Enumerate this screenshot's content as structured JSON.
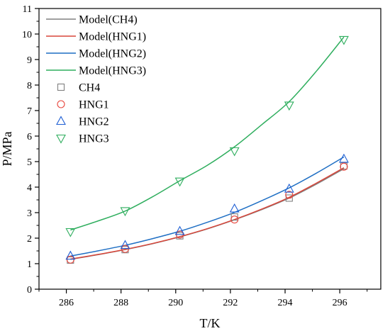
{
  "chart_data": {
    "type": "line",
    "xlabel": "T/K",
    "ylabel": "P/MPa",
    "xlim": [
      285,
      297.5
    ],
    "ylim": [
      0,
      11
    ],
    "xticks": [
      286,
      288,
      290,
      292,
      294,
      296
    ],
    "yticks": [
      0,
      1,
      2,
      3,
      4,
      5,
      6,
      7,
      8,
      9,
      10,
      11
    ],
    "grid": false,
    "legend_position": "top-left",
    "lines": [
      {
        "name": "Model(CH4)",
        "color": "#808080",
        "x": [
          286.15,
          287.15,
          288.15,
          289.15,
          290.15,
          291.15,
          292.15,
          293.15,
          294.15,
          295.15,
          296.15
        ],
        "y": [
          1.17,
          1.35,
          1.55,
          1.78,
          2.05,
          2.36,
          2.72,
          3.12,
          3.57,
          4.12,
          4.72
        ]
      },
      {
        "name": "Model(HNG1)",
        "color": "#d9463a",
        "x": [
          286.15,
          287.15,
          288.15,
          289.15,
          290.15,
          291.15,
          292.15,
          293.15,
          294.15,
          295.15,
          296.15
        ],
        "y": [
          1.18,
          1.36,
          1.56,
          1.79,
          2.06,
          2.37,
          2.73,
          3.14,
          3.6,
          4.16,
          4.76
        ]
      },
      {
        "name": "Model(HNG2)",
        "color": "#1f6fc4",
        "x": [
          286.15,
          287.15,
          288.15,
          289.15,
          290.15,
          291.15,
          292.15,
          293.15,
          294.15,
          295.15,
          296.15
        ],
        "y": [
          1.3,
          1.5,
          1.72,
          1.98,
          2.27,
          2.62,
          3.01,
          3.47,
          3.97,
          4.55,
          5.18
        ]
      },
      {
        "name": "Model(HNG3)",
        "color": "#2fae5e",
        "x": [
          286.15,
          287.15,
          288.15,
          289.15,
          290.15,
          291.15,
          292.15,
          293.15,
          294.15,
          295.15,
          296.15
        ],
        "y": [
          2.32,
          2.67,
          3.06,
          3.62,
          4.25,
          4.85,
          5.58,
          6.45,
          7.35,
          8.55,
          9.88
        ]
      }
    ],
    "points": [
      {
        "name": "CH4",
        "marker": "square",
        "color": "#808080",
        "x": [
          286.15,
          288.15,
          290.15,
          292.15,
          294.15,
          296.15
        ],
        "y": [
          1.14,
          1.55,
          2.09,
          2.83,
          3.57,
          4.83
        ]
      },
      {
        "name": "HNG1",
        "marker": "circle",
        "color": "#e8453c",
        "x": [
          286.15,
          288.15,
          290.15,
          292.15,
          294.15,
          296.15
        ],
        "y": [
          1.16,
          1.58,
          2.14,
          2.73,
          3.7,
          4.8
        ]
      },
      {
        "name": "HNG2",
        "marker": "triangle-up",
        "color": "#1f5fd4",
        "x": [
          286.15,
          288.15,
          290.15,
          292.15,
          294.15,
          296.15
        ],
        "y": [
          1.3,
          1.72,
          2.27,
          3.15,
          3.93,
          5.1
        ]
      },
      {
        "name": "HNG3",
        "marker": "triangle-down",
        "color": "#2fae5e",
        "x": [
          286.15,
          288.15,
          290.15,
          292.15,
          294.15,
          296.15
        ],
        "y": [
          2.25,
          3.07,
          4.23,
          5.42,
          7.21,
          9.78
        ]
      }
    ]
  }
}
